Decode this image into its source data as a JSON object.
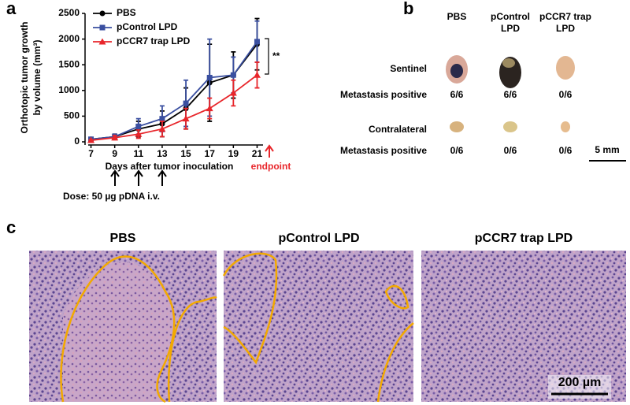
{
  "panel_labels": [
    "a",
    "b",
    "c"
  ],
  "chart_data": {
    "type": "line",
    "y_label": [
      "Orthotopic tumor growth",
      "by volume (mm³)"
    ],
    "x_label": "Days after tumor inoculation",
    "x": [
      7,
      9,
      11,
      13,
      15,
      17,
      19,
      21
    ],
    "xlim": [
      6.5,
      21.5
    ],
    "xticks": [
      7,
      9,
      11,
      13,
      15,
      17,
      19,
      21
    ],
    "ylim": [
      0,
      2500
    ],
    "yticks": [
      0,
      500,
      1000,
      1500,
      2000,
      2500
    ],
    "legend": "upper left",
    "series": [
      {
        "name": "PBS",
        "color": "#000000",
        "marker": "circle",
        "values": [
          50,
          100,
          250,
          350,
          650,
          1150,
          1300,
          1900
        ],
        "errors": [
          20,
          50,
          150,
          250,
          400,
          750,
          450,
          500
        ]
      },
      {
        "name": "pControl LPD",
        "color": "#3a4fa0",
        "marker": "square",
        "values": [
          50,
          100,
          300,
          450,
          750,
          1250,
          1300,
          1950
        ],
        "errors": [
          20,
          50,
          150,
          250,
          450,
          750,
          350,
          400
        ]
      },
      {
        "name": "pCCR7 trap LPD",
        "color": "#e8262b",
        "marker": "triangle",
        "values": [
          30,
          80,
          150,
          250,
          450,
          650,
          950,
          1300
        ],
        "errors": [
          10,
          40,
          80,
          150,
          200,
          200,
          250,
          250
        ]
      }
    ],
    "annotations": {
      "significance": "**",
      "endpoint": "endpoint",
      "dose": "Dose: 50 µg pDNA i.v."
    }
  },
  "panel_b": {
    "columns": [
      [
        "PBS"
      ],
      [
        "pControl",
        "LPD"
      ],
      [
        "pCCR7 trap",
        "LPD"
      ]
    ],
    "rows": [
      {
        "label": "Sentinel",
        "result_label": "Metastasis positive",
        "results": [
          "6/6",
          "6/6",
          "0/6"
        ]
      },
      {
        "label": "Contralateral",
        "result_label": "Metastasis positive",
        "results": [
          "0/6",
          "0/6",
          "0/6"
        ]
      }
    ],
    "scale_bar": "5 mm"
  },
  "panel_c": {
    "titles": [
      "PBS",
      "pControl LPD",
      "pCCR7 trap LPD"
    ],
    "scale_bar": "200 µm"
  }
}
